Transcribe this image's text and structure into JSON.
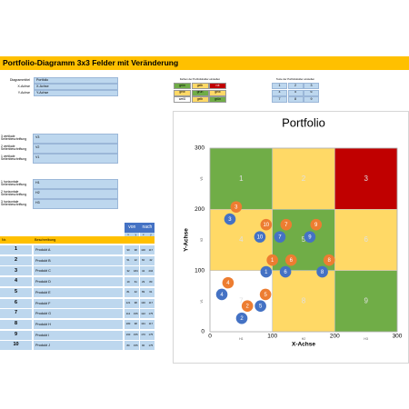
{
  "header": {
    "title": "Portfolio-Diagramm 3x3 Felder mit Veränderung"
  },
  "settings": {
    "rows": [
      [
        "Diagrammtitel",
        "Portfolio"
      ],
      [
        "X-Achse",
        "X-Achse"
      ],
      [
        "Y-Achse",
        "Y-Achse"
      ]
    ]
  },
  "colors": {
    "caption": "Farben der Portfoliofelder einstellen",
    "rows": [
      [
        "grün",
        "gelb",
        "rot"
      ],
      [
        "gelb",
        "grün",
        "gelb"
      ],
      [
        "weiß",
        "gelb",
        "grün"
      ]
    ],
    "palette": {
      "grün": "#70ad47",
      "gelb": "#ffd966",
      "rot": "#c00000",
      "weiß": "#ffffff"
    }
  },
  "texts": {
    "caption": "Texte der Portfoliofelder einstellen",
    "rows": [
      [
        "1",
        "2",
        "3"
      ],
      [
        "4",
        "5",
        "6"
      ],
      [
        "7",
        "8",
        "9"
      ]
    ]
  },
  "vertical": {
    "rows": [
      [
        "3 vertikale Seitenbeschriftung",
        "V3"
      ],
      [
        "2 vertikale Seitenbeschriftung",
        "V2"
      ],
      [
        "1 vertikale Seitenbeschriftung",
        "V1"
      ]
    ]
  },
  "horizontal": {
    "rows": [
      [
        "1 horizontale Seitenbeschriftung",
        "H1"
      ],
      [
        "2 horizontale Seitenbeschriftung",
        "H2"
      ],
      [
        "3 horizontale Seitenbeschriftung",
        "H3"
      ]
    ]
  },
  "table": {
    "header": [
      "Nr.",
      "Beschreibung"
    ],
    "groups": [
      "von",
      "nach"
    ],
    "subheads": [
      "x",
      "y",
      "x",
      "y"
    ],
    "nr": [
      1,
      2,
      3,
      4,
      5,
      6,
      7,
      8,
      9,
      10
    ],
    "names": [
      "Produkt A",
      "Produkt B",
      "Produkt C",
      "Produkt D",
      "Produkt E",
      "Produkt F",
      "Produkt G",
      "Produkt H",
      "Produkt I",
      "Produkt J"
    ]
  },
  "chart_data": {
    "type": "scatter",
    "xlim": [
      0,
      300
    ],
    "ylim": [
      0,
      300
    ],
    "xticks": [
      0,
      100,
      200,
      300
    ],
    "yticks": [
      0,
      100,
      200,
      300
    ],
    "series": [
      {
        "color": "#4472c4",
        "x": [
          90,
          51,
          32,
          19,
          81,
          121,
          112,
          180,
          160,
          80
        ],
        "values": [
          98,
          22,
          184,
          61,
          42,
          98,
          155,
          98,
          155,
          155
        ]
      },
      {
        "color": "#ed7d31",
        "x": [
          100,
          60,
          42,
          29,
          89,
          130,
          122,
          191,
          170,
          90
        ],
        "values": [
          117,
          42,
          204,
          80,
          61,
          117,
          175,
          117,
          175,
          175
        ]
      }
    ]
  }
}
